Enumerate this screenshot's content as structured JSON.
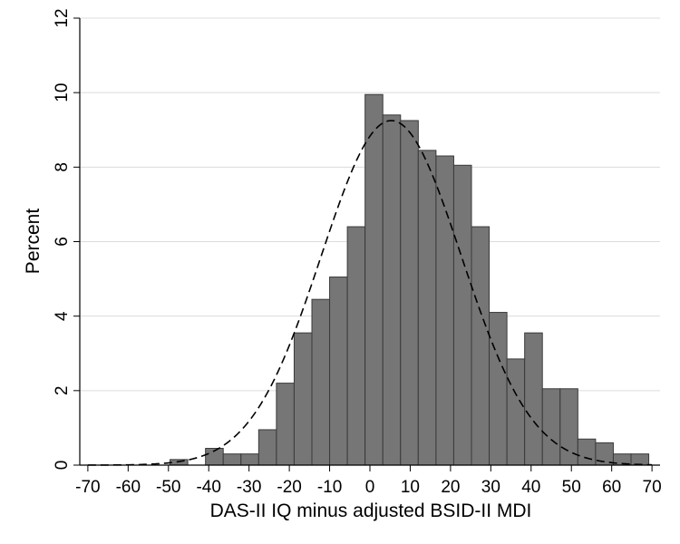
{
  "chart_data": {
    "type": "bar",
    "title": "",
    "xlabel": "DAS-II IQ minus adjusted BSID-II MDI",
    "ylabel": "Percent",
    "xlim": [
      -72,
      72
    ],
    "ylim": [
      0,
      12
    ],
    "x_ticks": [
      -70,
      -60,
      -50,
      -40,
      -30,
      -20,
      -10,
      0,
      10,
      20,
      30,
      40,
      50,
      60,
      70
    ],
    "y_ticks": [
      0,
      2,
      4,
      6,
      8,
      10,
      12
    ],
    "grid": true,
    "legend": "none",
    "bin_width": 4.4,
    "bins": [
      {
        "x0": -49.6,
        "value": 0.15
      },
      {
        "x0": -45.2,
        "value": 0.0
      },
      {
        "x0": -40.8,
        "value": 0.45
      },
      {
        "x0": -36.4,
        "value": 0.3
      },
      {
        "x0": -32.0,
        "value": 0.3
      },
      {
        "x0": -27.6,
        "value": 0.95
      },
      {
        "x0": -23.2,
        "value": 2.2
      },
      {
        "x0": -18.8,
        "value": 3.55
      },
      {
        "x0": -14.4,
        "value": 4.45
      },
      {
        "x0": -10.0,
        "value": 5.05
      },
      {
        "x0": -5.6,
        "value": 6.4
      },
      {
        "x0": -1.2,
        "value": 9.95
      },
      {
        "x0": 3.2,
        "value": 9.4
      },
      {
        "x0": 7.6,
        "value": 9.25
      },
      {
        "x0": 12.0,
        "value": 8.45
      },
      {
        "x0": 16.4,
        "value": 8.3
      },
      {
        "x0": 20.8,
        "value": 8.05
      },
      {
        "x0": 25.2,
        "value": 6.4
      },
      {
        "x0": 29.6,
        "value": 4.1
      },
      {
        "x0": 34.0,
        "value": 2.85
      },
      {
        "x0": 38.4,
        "value": 3.55
      },
      {
        "x0": 42.8,
        "value": 2.05
      },
      {
        "x0": 47.2,
        "value": 2.05
      },
      {
        "x0": 51.6,
        "value": 0.7
      },
      {
        "x0": 56.0,
        "value": 0.6
      },
      {
        "x0": 60.4,
        "value": 0.3
      },
      {
        "x0": 64.8,
        "value": 0.3
      }
    ],
    "density_curve": {
      "style": "dashed",
      "peak": 9.25,
      "mean": 5.3,
      "sd": 17.4
    },
    "colors": {
      "bar_fill": "#767676",
      "bar_stroke": "#3a3a3a",
      "grid": "#dcdcdc",
      "curve": "#000000"
    }
  }
}
